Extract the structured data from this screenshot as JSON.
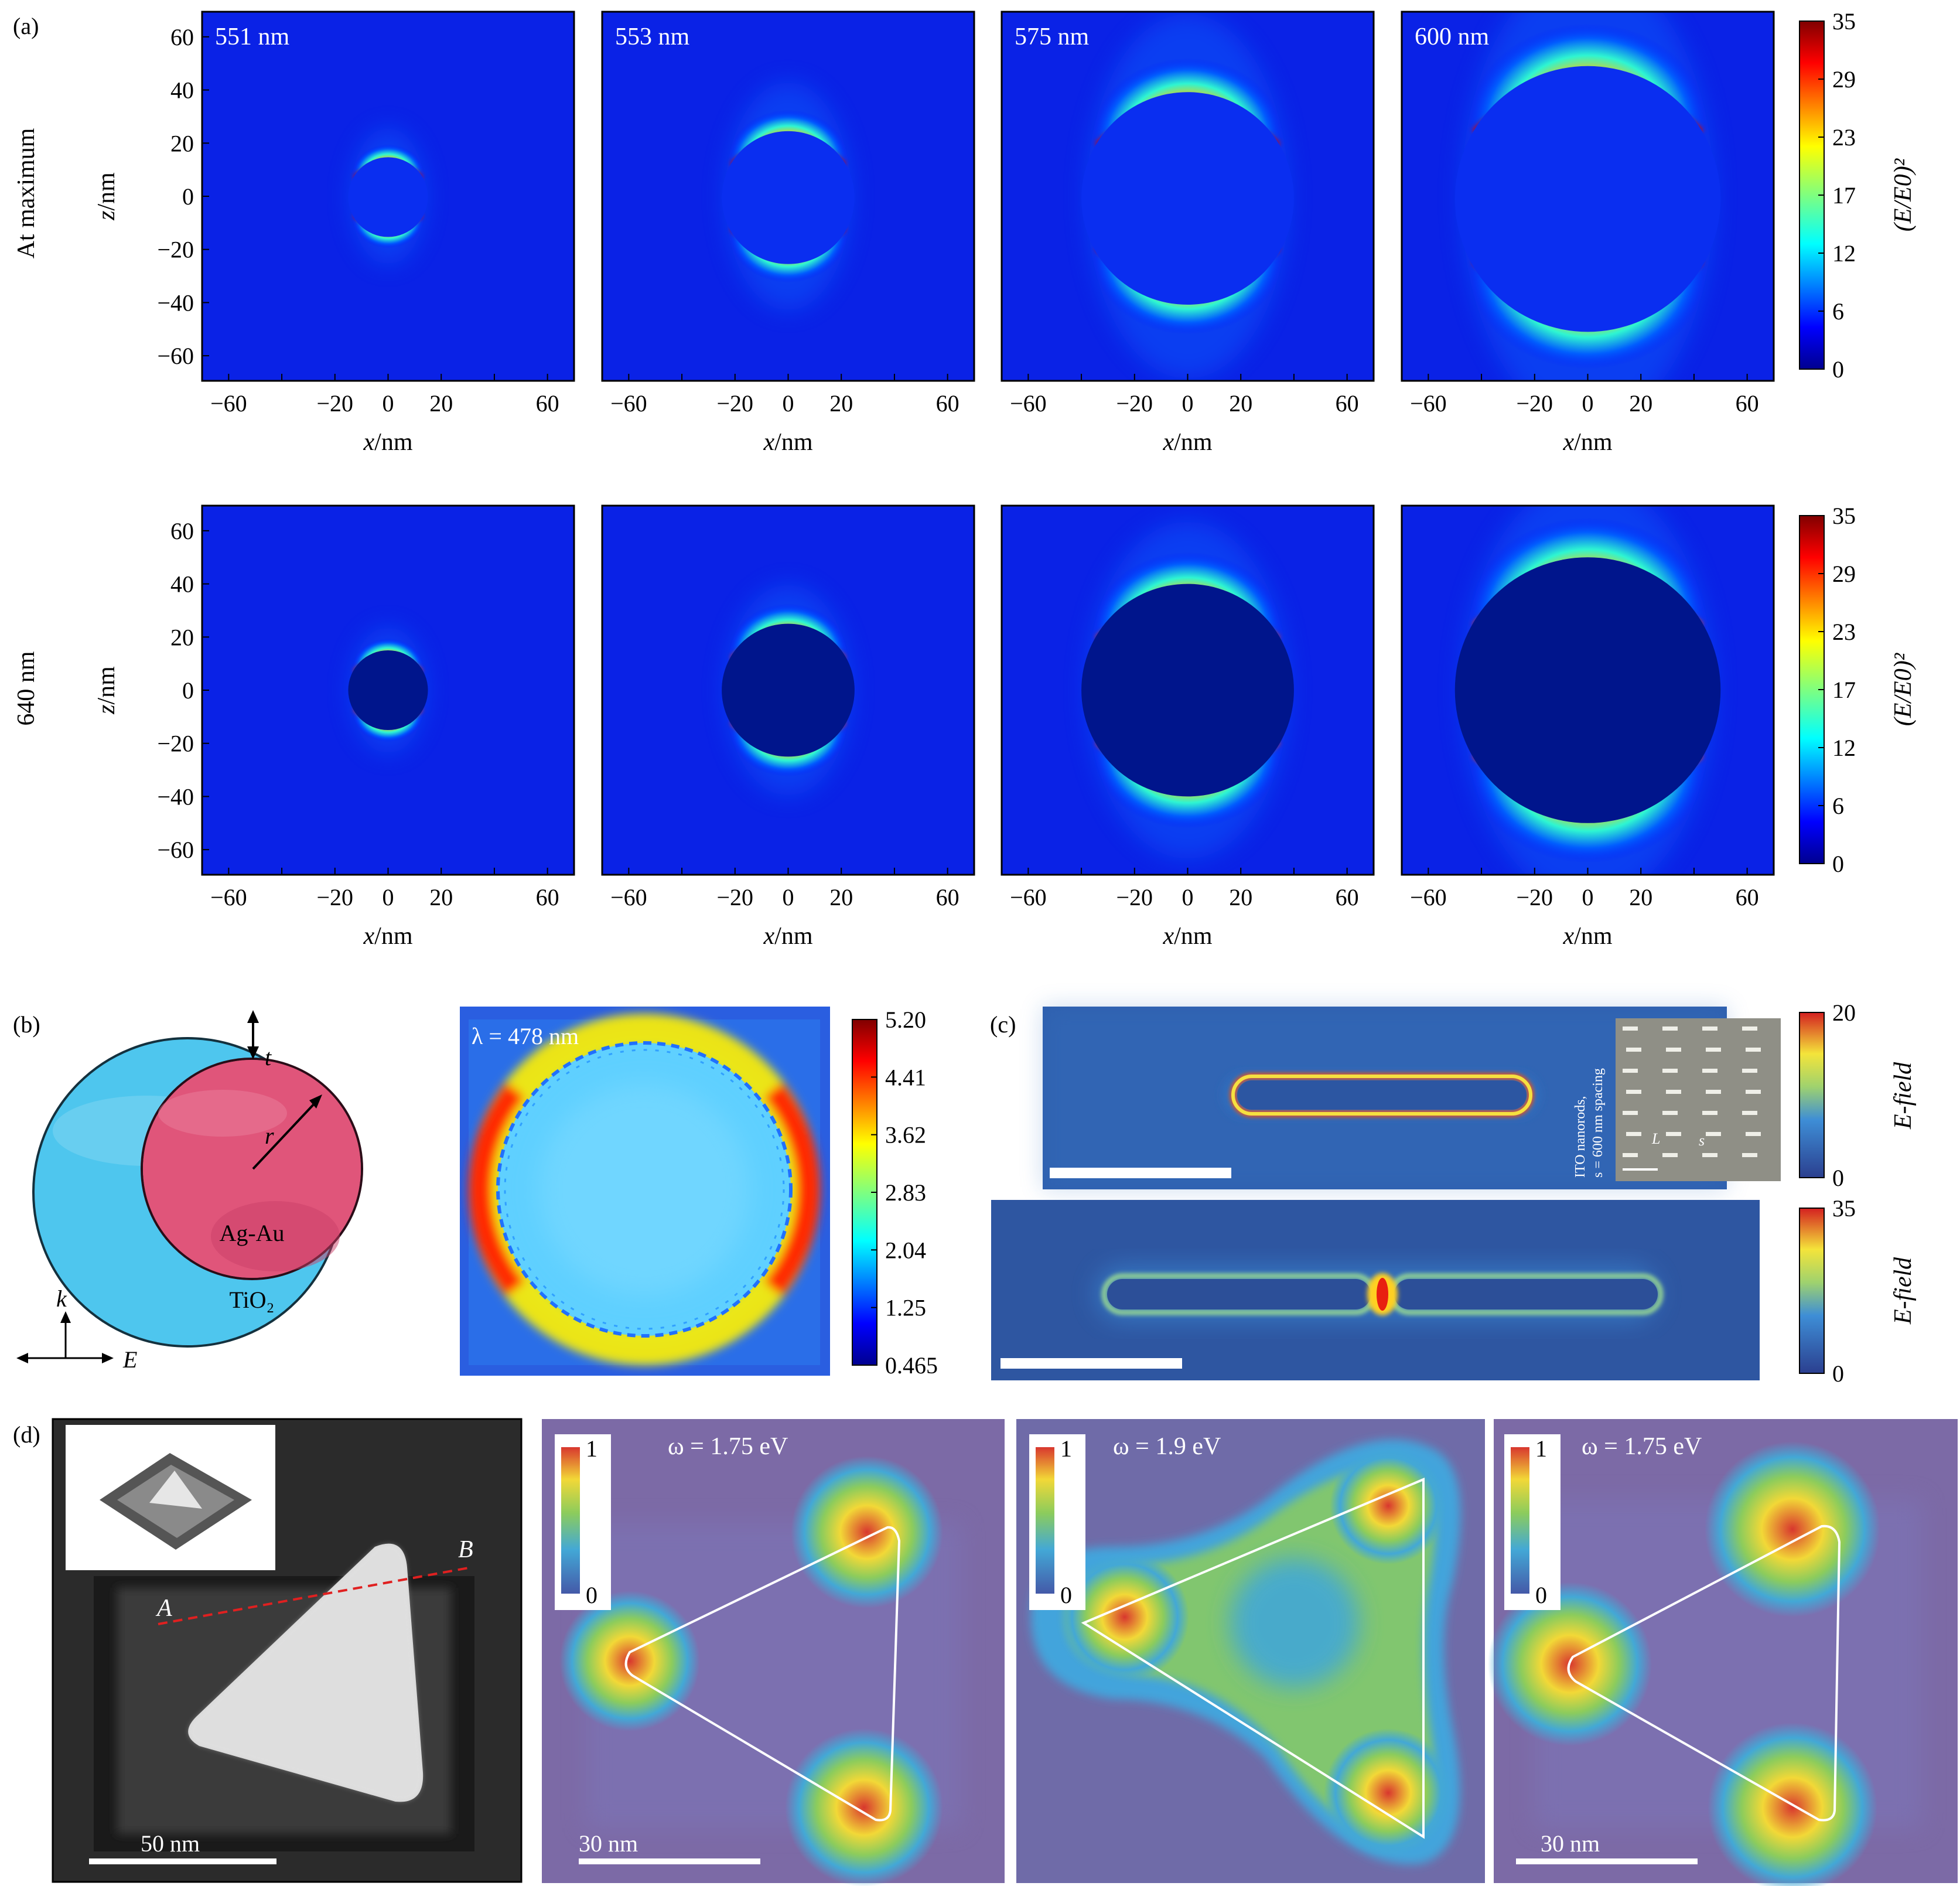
{
  "panel_labels": {
    "a": "(a)",
    "b": "(b)",
    "c": "(c)",
    "d": "(d)"
  },
  "panel_a": {
    "row_labels": [
      "At maximum",
      "640 nm"
    ],
    "column_labels": [
      "551 nm",
      "553 nm",
      "575 nm",
      "600 nm"
    ],
    "x_axis_label": "x/nm",
    "z_axis_label": "z/nm",
    "x_ticks": [
      "−60",
      "−20",
      "0",
      "20",
      "60"
    ],
    "z_ticks": [
      "60",
      "40",
      "20",
      "0",
      "−20",
      "−40",
      "−60"
    ],
    "colorbar_label": "(E/E0)²",
    "colorbar_ticks": [
      "35",
      "29",
      "23",
      "17",
      "12",
      "6",
      "0"
    ],
    "core_radii_nm": [
      15,
      25,
      40,
      50
    ]
  },
  "panel_b": {
    "label_t": "t",
    "label_r": "r",
    "core_label": "Ag-Au",
    "shell_label": "TiO₂",
    "k_label": "k",
    "e_label": "E",
    "map_title": "λ = 478 nm",
    "colorbar_ticks": [
      "5.20",
      "4.41",
      "3.62",
      "2.83",
      "2.04",
      "1.25",
      "0.465"
    ],
    "colors": {
      "shell": "#4ec6ee",
      "core": "#e0557a"
    }
  },
  "panel_c": {
    "inset_caption_line1": "ITO nanorods,",
    "inset_caption_line2": "s = 600 nm spacing",
    "inset_L": "L",
    "inset_s": "s",
    "colorbar_label": "E-field",
    "top_colorbar_ticks": [
      "20",
      "0"
    ],
    "bottom_colorbar_ticks": [
      "35",
      "0"
    ]
  },
  "panel_d": {
    "point_a": "A",
    "point_b": "B",
    "scale_bars": [
      "50 nm",
      "30 nm",
      "30 nm"
    ],
    "energies": [
      "ω = 1.75 eV",
      "ω = 1.9 eV",
      "ω = 1.75 eV"
    ],
    "colorbar_ticks": [
      "1",
      "0"
    ]
  },
  "colors": {
    "jet_low": "#00008f",
    "jet_high": "#800000",
    "muted_low": "#7c6aa6"
  }
}
